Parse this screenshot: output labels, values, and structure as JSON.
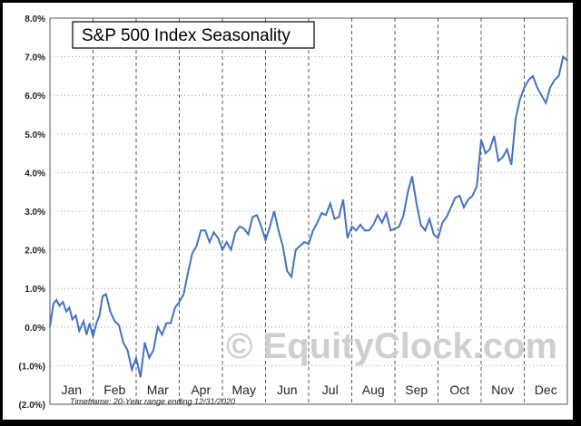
{
  "chart_data": {
    "type": "line",
    "title": "S&P 500 Index Seasonality",
    "watermark": "© EquityClock.com",
    "note": "Timeframe: 20-Year range ending 12/31/2020",
    "y_ticks": [
      "8.0%",
      "7.0%",
      "6.0%",
      "5.0%",
      "4.0%",
      "3.0%",
      "2.0%",
      "1.0%",
      "0.0%",
      "(1.0%)",
      "(2.0%)"
    ],
    "months": [
      "Jan",
      "Feb",
      "Mar",
      "Apr",
      "May",
      "Jun",
      "Jul",
      "Aug",
      "Sep",
      "Oct",
      "Nov",
      "Dec"
    ],
    "ylim": [
      -2.0,
      8.0
    ],
    "grid": "vertical dashed month separators, horizontal dotted",
    "line_color": "#4472c4",
    "series": [
      {
        "x_unit": "month (0 = Jan 1, 12 = Dec 31)",
        "x": [
          0,
          0.08,
          0.15,
          0.22,
          0.3,
          0.38,
          0.45,
          0.52,
          0.6,
          0.68,
          0.78,
          0.85,
          0.92,
          1.0,
          1.08,
          1.15,
          1.22,
          1.3,
          1.4,
          1.5,
          1.6,
          1.7,
          1.8,
          1.9,
          2.0,
          2.1,
          2.2,
          2.3,
          2.4,
          2.5,
          2.6,
          2.7,
          2.8,
          2.9,
          3.0,
          3.1,
          3.2,
          3.3,
          3.4,
          3.5,
          3.6,
          3.7,
          3.8,
          3.9,
          4.0,
          4.1,
          4.2,
          4.3,
          4.4,
          4.5,
          4.6,
          4.7,
          4.8,
          4.9,
          5.0,
          5.1,
          5.2,
          5.3,
          5.4,
          5.5,
          5.6,
          5.7,
          5.8,
          5.9,
          6.0,
          6.1,
          6.2,
          6.3,
          6.4,
          6.5,
          6.6,
          6.7,
          6.8,
          6.9,
          7.0,
          7.1,
          7.2,
          7.3,
          7.4,
          7.5,
          7.6,
          7.7,
          7.8,
          7.9,
          8.0,
          8.1,
          8.2,
          8.3,
          8.4,
          8.5,
          8.6,
          8.7,
          8.8,
          8.9,
          9.0,
          9.1,
          9.2,
          9.3,
          9.4,
          9.5,
          9.6,
          9.7,
          9.8,
          9.9,
          10.0,
          10.1,
          10.2,
          10.3,
          10.4,
          10.5,
          10.6,
          10.7,
          10.8,
          10.9,
          11.0,
          11.1,
          11.2,
          11.3,
          11.4,
          11.5,
          11.6,
          11.7,
          11.8,
          11.9,
          12.0
        ],
        "y": [
          0,
          0.6,
          0.7,
          0.55,
          0.65,
          0.4,
          0.5,
          0.2,
          0.3,
          -0.1,
          0.15,
          -0.2,
          0.1,
          -0.25,
          0.1,
          0.3,
          0.8,
          0.85,
          0.4,
          0.15,
          0.05,
          -0.4,
          -0.6,
          -1.1,
          -0.8,
          -1.3,
          -0.4,
          -0.8,
          -0.6,
          0,
          -0.2,
          0.1,
          0.1,
          0.5,
          0.65,
          0.85,
          1.4,
          1.9,
          2.1,
          2.5,
          2.5,
          2.2,
          2.45,
          2.3,
          2.0,
          2.2,
          2.0,
          2.45,
          2.6,
          2.55,
          2.4,
          2.85,
          2.9,
          2.6,
          2.25,
          2.6,
          3.0,
          2.5,
          2.1,
          1.45,
          1.3,
          2.0,
          2.1,
          2.2,
          2.15,
          2.5,
          2.7,
          2.95,
          2.9,
          3.2,
          2.8,
          2.85,
          3.3,
          2.3,
          2.6,
          2.5,
          2.65,
          2.5,
          2.5,
          2.65,
          2.9,
          2.7,
          2.95,
          2.5,
          2.55,
          2.6,
          2.9,
          3.5,
          3.9,
          3.2,
          2.65,
          2.5,
          2.8,
          2.4,
          2.3,
          2.7,
          2.85,
          3.1,
          3.35,
          3.4,
          3.1,
          3.3,
          3.4,
          3.65,
          4.85,
          4.5,
          4.6,
          4.95,
          4.3,
          4.4,
          4.6,
          4.2,
          5.4,
          5.9,
          6.2,
          6.4,
          6.5,
          6.2,
          6.0,
          5.8,
          6.2,
          6.4,
          6.5,
          7.0,
          6.9
        ]
      }
    ]
  }
}
